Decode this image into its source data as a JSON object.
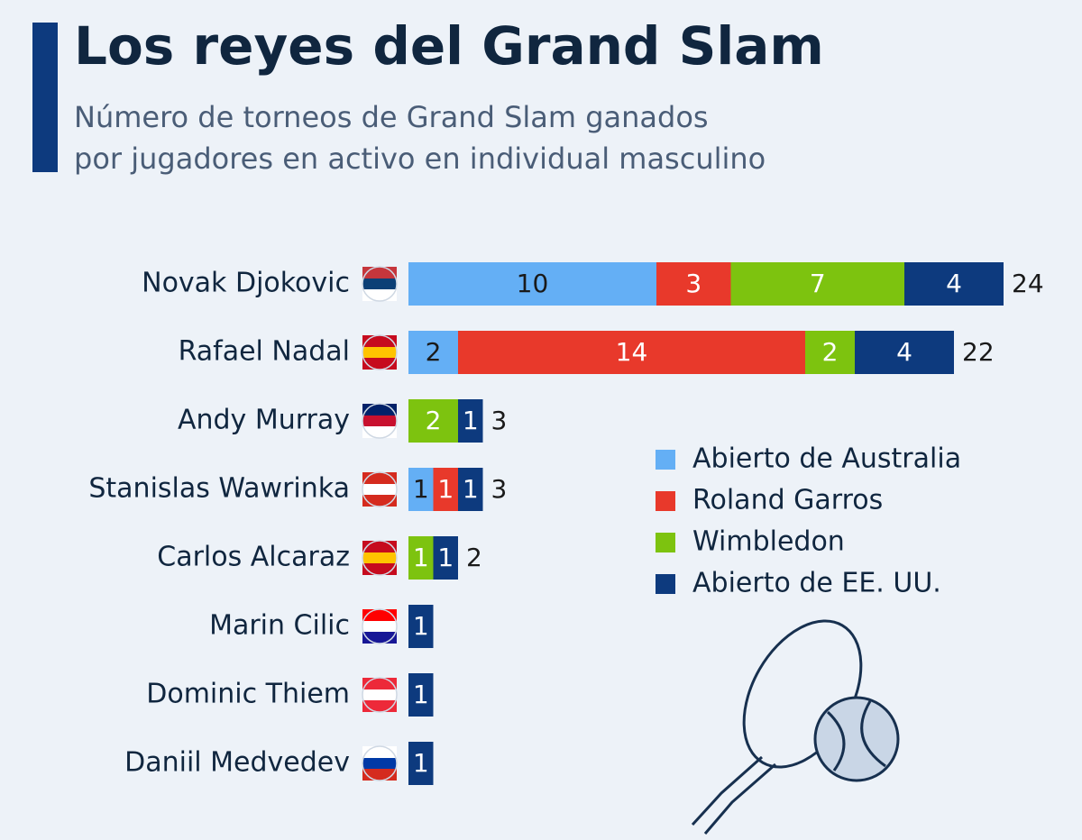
{
  "chart_data": {
    "type": "stacked-bar-horizontal",
    "title": "Los reyes del Grand Slam",
    "subtitle": [
      "Número de torneos de Grand Slam ganados",
      "por jugadores en activo en individual masculino"
    ],
    "categories": [
      "Novak Djokovic",
      "Rafael Nadal",
      "Andy Murray",
      "Stanislas Wawrinka",
      "Carlos Alcaraz",
      "Marin Cilic",
      "Dominic Thiem",
      "Daniil Medvedev"
    ],
    "series": [
      {
        "name": "Abierto de Australia",
        "color": "#64aff5",
        "label_color": "#1a1a1a",
        "values": [
          10,
          2,
          0,
          1,
          0,
          0,
          0,
          0
        ]
      },
      {
        "name": "Roland Garros",
        "color": "#e8392b",
        "label_color": "#ffffff",
        "values": [
          3,
          14,
          0,
          1,
          0,
          0,
          0,
          0
        ]
      },
      {
        "name": "Wimbledon",
        "color": "#7dc30f",
        "label_color": "#ffffff",
        "values": [
          7,
          2,
          2,
          0,
          1,
          0,
          0,
          0
        ]
      },
      {
        "name": "Abierto de EE. UU.",
        "color": "#0d3a7e",
        "label_color": "#ffffff",
        "values": [
          4,
          4,
          1,
          1,
          1,
          1,
          1,
          1
        ]
      }
    ],
    "totals": [
      24,
      22,
      3,
      3,
      2,
      null,
      null,
      null
    ]
  }
}
